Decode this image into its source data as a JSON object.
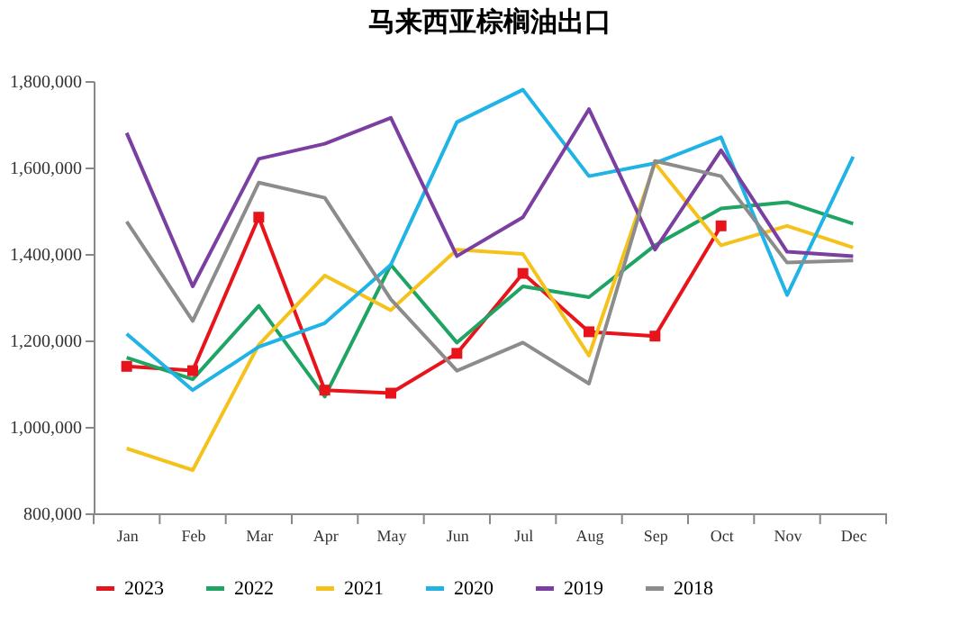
{
  "chart_data": {
    "type": "line",
    "title": "马来西亚棕榈油出口",
    "categories": [
      "Jan",
      "Feb",
      "Mar",
      "Apr",
      "May",
      "Jun",
      "Jul",
      "Aug",
      "Sep",
      "Oct",
      "Nov",
      "Dec"
    ],
    "series": [
      {
        "name": "2023",
        "color": "#e8141b",
        "marker": "square",
        "values": [
          1140000,
          1130000,
          1485000,
          1085000,
          1078000,
          1170000,
          1355000,
          1220000,
          1210000,
          1465000,
          null,
          null
        ]
      },
      {
        "name": "2022",
        "color": "#1fa463",
        "values": [
          1160000,
          1110000,
          1280000,
          1070000,
          1375000,
          1195000,
          1325000,
          1300000,
          1420000,
          1505000,
          1520000,
          1470000
        ]
      },
      {
        "name": "2021",
        "color": "#f5c21b",
        "values": [
          950000,
          900000,
          1190000,
          1350000,
          1270000,
          1410000,
          1400000,
          1165000,
          1610000,
          1420000,
          1465000,
          1415000
        ]
      },
      {
        "name": "2020",
        "color": "#1fb3e6",
        "values": [
          1215000,
          1085000,
          1185000,
          1240000,
          1375000,
          1705000,
          1780000,
          1580000,
          1610000,
          1670000,
          1305000,
          1625000
        ]
      },
      {
        "name": "2019",
        "color": "#7a3fa0",
        "values": [
          1680000,
          1325000,
          1620000,
          1655000,
          1715000,
          1395000,
          1485000,
          1735000,
          1410000,
          1640000,
          1405000,
          1395000
        ]
      },
      {
        "name": "2018",
        "color": "#8c8c8c",
        "values": [
          1475000,
          1245000,
          1565000,
          1530000,
          1295000,
          1130000,
          1195000,
          1100000,
          1615000,
          1580000,
          1380000,
          1385000
        ]
      }
    ],
    "ylim": [
      800000,
      1800000
    ],
    "yticks": [
      {
        "value": 800000,
        "label": "800,000"
      },
      {
        "value": 1000000,
        "label": "1,000,000"
      },
      {
        "value": 1200000,
        "label": "1,200,000"
      },
      {
        "value": 1400000,
        "label": "1,400,000"
      },
      {
        "value": 1600000,
        "label": "1,600,000"
      },
      {
        "value": 1800000,
        "label": "1,800,000"
      }
    ],
    "grid": false,
    "legend": "bottom",
    "marker": "none",
    "line_style": "solid"
  }
}
